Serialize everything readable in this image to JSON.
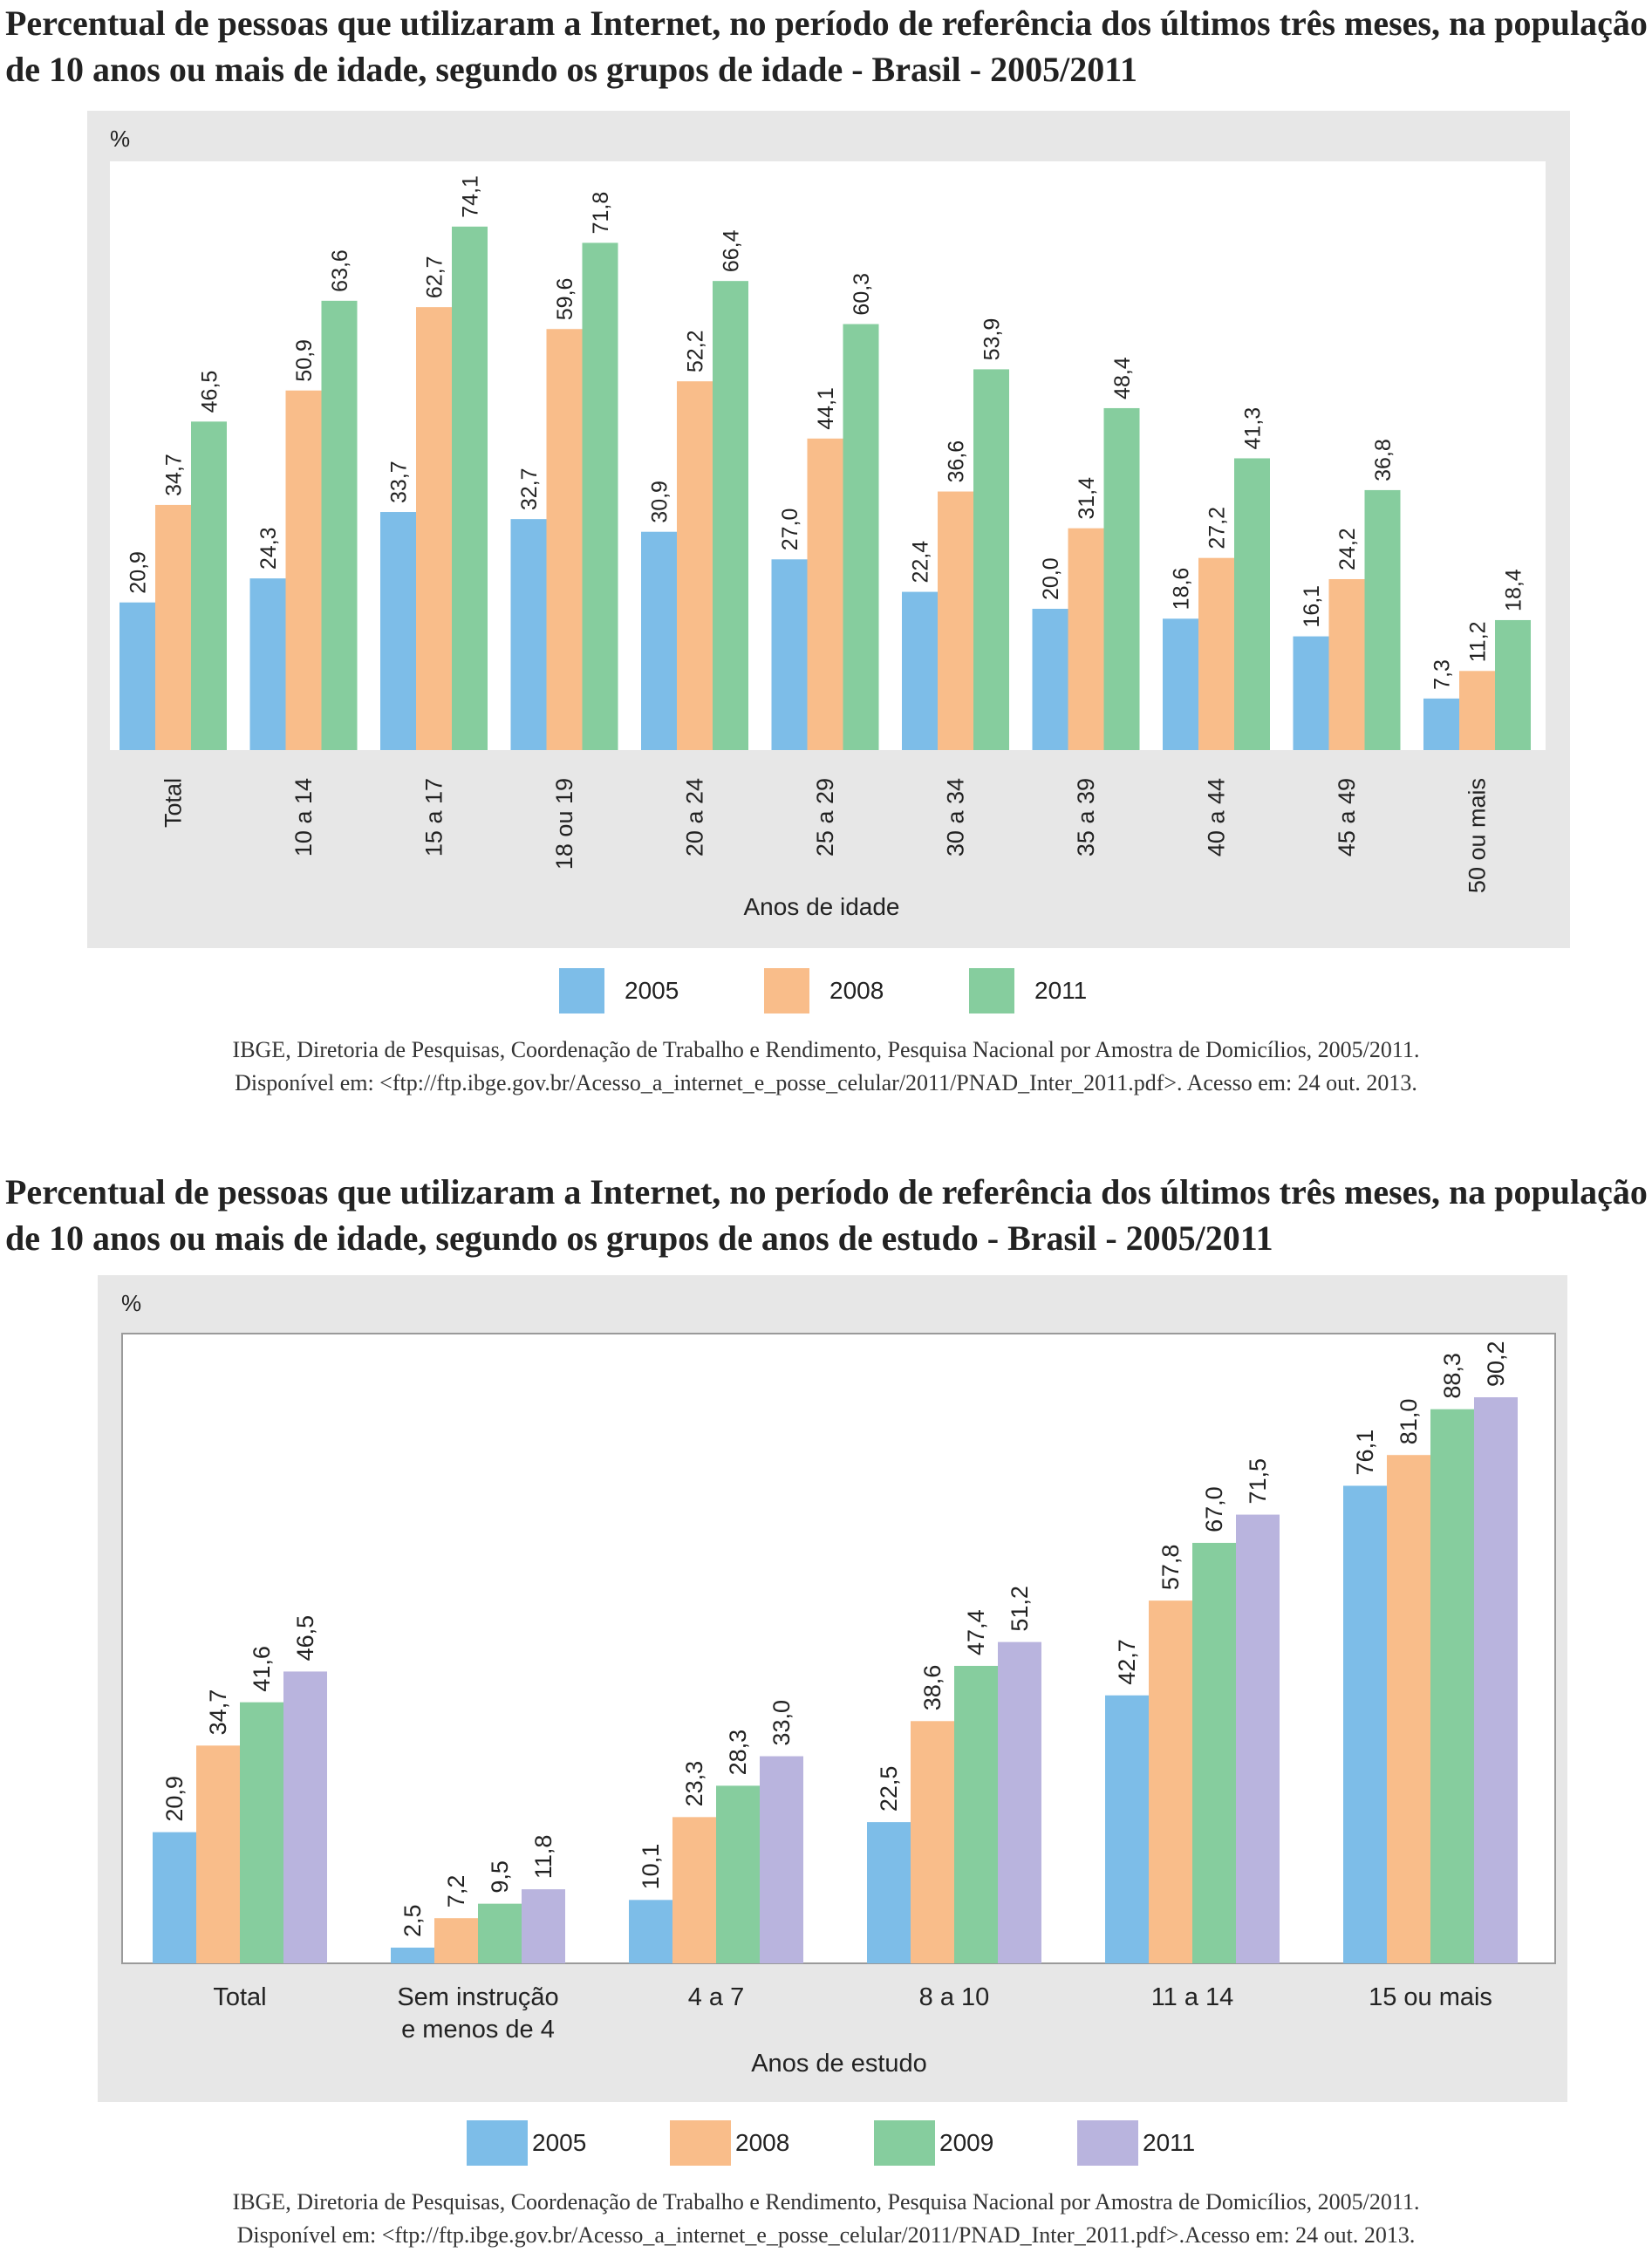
{
  "colors": {
    "2005": "#7dbde8",
    "2008": "#f9bd8a",
    "2009": "#86cd9e",
    "2011_c1": "#86cd9e",
    "2011_c2": "#b9b4de",
    "panel": "#e7e7e7",
    "plot": "#ffffff"
  },
  "chart_data": [
    {
      "type": "bar",
      "title": "Percentual de pessoas que utilizaram a Internet, no período de referência dos últimos três meses, na população de 10 anos ou mais de idade, segundo os grupos de idade - Brasil - 2005/2011",
      "ylabel": "%",
      "xlabel": "Anos de idade",
      "categories": [
        "Total",
        "10 a 14",
        "15 a 17",
        "18 ou 19",
        "20 a 24",
        "25 a 29",
        "30 a 34",
        "35 a 39",
        "40 a 44",
        "45 a 49",
        "50 ou mais"
      ],
      "series": [
        {
          "name": "2005",
          "values": [
            20.9,
            24.3,
            33.7,
            32.7,
            30.9,
            27.0,
            22.4,
            20.0,
            18.6,
            16.1,
            7.3
          ],
          "labels": [
            "20,9",
            "24,3",
            "33,7",
            "32,7",
            "30,9",
            "27,0",
            "22,4",
            "20,0",
            "18,6",
            "16,1",
            "7,3"
          ]
        },
        {
          "name": "2008",
          "values": [
            34.7,
            50.9,
            62.7,
            59.6,
            52.2,
            44.1,
            36.6,
            31.4,
            27.2,
            24.2,
            11.2
          ],
          "labels": [
            "34,7",
            "50,9",
            "62,7",
            "59,6",
            "52,2",
            "44,1",
            "36,6",
            "31,4",
            "27,2",
            "24,2",
            "11,2"
          ]
        },
        {
          "name": "2011",
          "values": [
            46.5,
            63.6,
            74.1,
            71.8,
            66.4,
            60.3,
            53.9,
            48.4,
            41.3,
            36.8,
            18.4
          ],
          "labels": [
            "46,5",
            "63,6",
            "74,1",
            "71,8",
            "66,4",
            "60,3",
            "53,9",
            "48,4",
            "41,3",
            "36,8",
            "18,4"
          ]
        }
      ],
      "ylim": [
        0,
        82
      ],
      "grid": false,
      "legend_position": "bottom",
      "source": "IBGE, Diretoria de Pesquisas, Coordenação de Trabalho e Rendimento, Pesquisa Nacional por Amostra de Domicílios, 2005/2011.",
      "source_url": "Disponível em: <ftp://ftp.ibge.gov.br/Acesso_a_internet_e_posse_celular/2011/PNAD_Inter_2011.pdf>. Acesso em: 24 out. 2013."
    },
    {
      "type": "bar",
      "title": "Percentual de pessoas que utilizaram a Internet, no período de referência dos últimos três meses, na população de 10 anos ou mais de idade, segundo os grupos de anos de estudo - Brasil - 2005/2011",
      "ylabel": "%",
      "xlabel": "Anos de estudo",
      "categories": [
        "Total",
        "Sem instrução e menos de 4",
        "4 a 7",
        "8 a 10",
        "11 a 14",
        "15 ou mais"
      ],
      "category_lines": [
        [
          "Total"
        ],
        [
          "Sem instrução",
          "e menos de 4"
        ],
        [
          "4 a 7"
        ],
        [
          "8 a 10"
        ],
        [
          "11 a 14"
        ],
        [
          "15 ou mais"
        ]
      ],
      "series": [
        {
          "name": "2005",
          "values": [
            20.9,
            2.5,
            10.1,
            22.5,
            42.7,
            76.1
          ],
          "labels": [
            "20,9",
            "2,5",
            "10,1",
            "22,5",
            "42,7",
            "76,1"
          ]
        },
        {
          "name": "2008",
          "values": [
            34.7,
            7.2,
            23.3,
            38.6,
            57.8,
            81.0
          ],
          "labels": [
            "34,7",
            "7,2",
            "23,3",
            "38,6",
            "57,8",
            "81,0"
          ]
        },
        {
          "name": "2009",
          "values": [
            41.6,
            9.5,
            28.3,
            47.4,
            67.0,
            88.3
          ],
          "labels": [
            "41,6",
            "9,5",
            "28,3",
            "47,4",
            "67,0",
            "88,3"
          ]
        },
        {
          "name": "2011",
          "values": [
            46.5,
            11.8,
            33.0,
            51.2,
            71.5,
            90.2
          ],
          "labels": [
            "46,5",
            "11,8",
            "33,0",
            "51,2",
            "71,5",
            "90,2"
          ]
        }
      ],
      "ylim": [
        0,
        100
      ],
      "grid": false,
      "legend_position": "bottom",
      "source": "IBGE, Diretoria de Pesquisas, Coordenação de Trabalho e Rendimento, Pesquisa Nacional por Amostra de Domicílios, 2005/2011.",
      "source_url": "Disponível em: <ftp://ftp.ibge.gov.br/Acesso_a_internet_e_posse_celular/2011/PNAD_Inter_2011.pdf>.Acesso em: 24 out. 2013."
    }
  ]
}
